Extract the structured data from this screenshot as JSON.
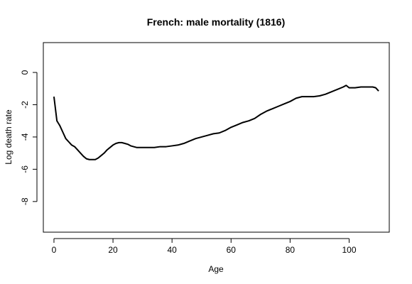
{
  "chart_data": {
    "type": "line",
    "title": "French: male mortality (1816)",
    "xlabel": "Age",
    "ylabel": "Log death rate",
    "xlim": [
      -3.6,
      113.6
    ],
    "ylim": [
      -9.9,
      1.85
    ],
    "xticks": [
      0,
      20,
      40,
      60,
      80,
      100
    ],
    "yticks": [
      0,
      -2,
      -4,
      -6,
      -8
    ],
    "grid": false,
    "series": [
      {
        "name": "",
        "color": "#000000",
        "x": [
          0,
          1,
          2,
          3,
          4,
          5,
          6,
          7,
          8,
          9,
          10,
          11,
          12,
          13,
          14,
          15,
          16,
          17,
          18,
          19,
          20,
          21,
          22,
          23,
          24,
          25,
          26,
          27,
          28,
          29,
          30,
          32,
          34,
          36,
          38,
          40,
          42,
          44,
          46,
          48,
          50,
          52,
          54,
          56,
          58,
          60,
          62,
          64,
          66,
          68,
          70,
          72,
          74,
          76,
          78,
          80,
          82,
          84,
          86,
          88,
          90,
          92,
          94,
          96,
          98,
          99,
          100,
          101,
          102,
          104,
          106,
          108,
          109,
          110
        ],
        "y": [
          -1.5,
          -3.0,
          -3.3,
          -3.7,
          -4.1,
          -4.3,
          -4.5,
          -4.6,
          -4.8,
          -5.0,
          -5.2,
          -5.35,
          -5.4,
          -5.4,
          -5.4,
          -5.3,
          -5.15,
          -5.0,
          -4.8,
          -4.65,
          -4.5,
          -4.4,
          -4.35,
          -4.35,
          -4.4,
          -4.45,
          -4.55,
          -4.6,
          -4.65,
          -4.65,
          -4.65,
          -4.65,
          -4.65,
          -4.6,
          -4.6,
          -4.55,
          -4.5,
          -4.4,
          -4.25,
          -4.1,
          -4.0,
          -3.9,
          -3.8,
          -3.75,
          -3.6,
          -3.4,
          -3.25,
          -3.1,
          -3.0,
          -2.85,
          -2.6,
          -2.4,
          -2.25,
          -2.1,
          -1.95,
          -1.8,
          -1.6,
          -1.5,
          -1.5,
          -1.5,
          -1.45,
          -1.35,
          -1.2,
          -1.05,
          -0.9,
          -0.8,
          -0.95,
          -0.95,
          -0.95,
          -0.9,
          -0.9,
          -0.9,
          -0.95,
          -1.15
        ]
      }
    ]
  }
}
